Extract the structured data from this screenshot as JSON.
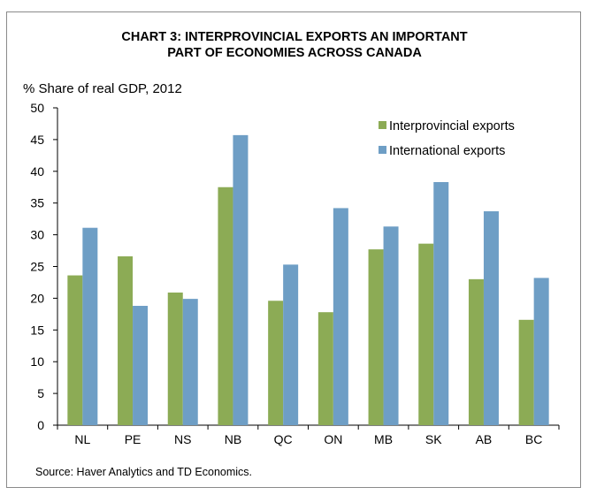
{
  "title_lines": [
    "CHART 3: INTERPROVINCIAL EXPORTS AN IMPORTANT",
    "PART OF ECONOMIES ACROSS CANADA"
  ],
  "source": "Source: Haver Analytics and TD Economics.",
  "chart_data": {
    "type": "bar",
    "title": "CHART 3: INTERPROVINCIAL EXPORTS AN IMPORTANT PART OF ECONOMIES ACROSS CANADA",
    "xlabel": "",
    "ylabel": "% Share of real GDP, 2012",
    "ylim": [
      0,
      50
    ],
    "yticks": [
      0,
      5,
      10,
      15,
      20,
      25,
      30,
      35,
      40,
      45,
      50
    ],
    "grid": false,
    "legend_position": "top-right",
    "categories": [
      "NL",
      "PE",
      "NS",
      "NB",
      "QC",
      "ON",
      "MB",
      "SK",
      "AB",
      "BC"
    ],
    "series": [
      {
        "name": "Interprovincial exports",
        "color": "#8cab55",
        "values": [
          23.6,
          26.6,
          20.9,
          37.5,
          19.6,
          17.8,
          27.7,
          28.6,
          23.0,
          16.6
        ]
      },
      {
        "name": "International exports",
        "color": "#6e9ec5",
        "values": [
          31.1,
          18.8,
          19.9,
          45.7,
          25.3,
          34.2,
          31.3,
          38.3,
          33.7,
          23.2
        ]
      }
    ]
  }
}
